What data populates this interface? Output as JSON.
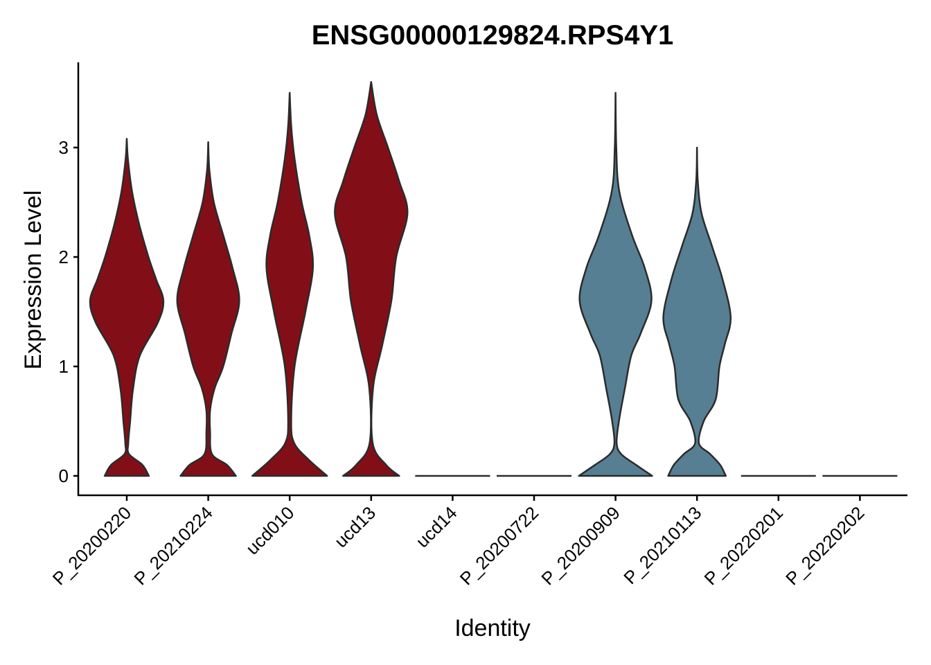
{
  "chart_data": {
    "type": "violin",
    "title": "ENSG00000129824.RPS4Y1",
    "xlabel": "Identity",
    "ylabel": "Expression Level",
    "ylim": [
      -0.17,
      3.75
    ],
    "yticks": [
      0,
      1,
      2,
      3
    ],
    "grid": false,
    "legend": "none",
    "colors": {
      "red": "#820f17",
      "blue": "#567f93",
      "outline": "#2b2b2b"
    },
    "categories": [
      "P_20200220",
      "P_20210224",
      "ucd010",
      "ucd13",
      "ucd14",
      "P_20200722",
      "P_20200909",
      "P_20210113",
      "P_20220201",
      "P_20220202"
    ],
    "groups": [
      {
        "name": "P_20200220",
        "color": "red",
        "max": 3.08,
        "profile": [
          [
            0,
            0.59
          ],
          [
            0.1,
            0.42
          ],
          [
            0.2,
            0.06
          ],
          [
            0.3,
            0.04
          ],
          [
            0.5,
            0.09
          ],
          [
            0.8,
            0.17
          ],
          [
            1.1,
            0.35
          ],
          [
            1.4,
            0.83
          ],
          [
            1.6,
            0.98
          ],
          [
            1.8,
            0.78
          ],
          [
            2.0,
            0.58
          ],
          [
            2.3,
            0.33
          ],
          [
            2.6,
            0.14
          ],
          [
            2.9,
            0.03
          ],
          [
            3.08,
            0
          ]
        ]
      },
      {
        "name": "P_20210224",
        "color": "red",
        "max": 3.05,
        "profile": [
          [
            0,
            0.74
          ],
          [
            0.1,
            0.5
          ],
          [
            0.2,
            0.1
          ],
          [
            0.4,
            0.05
          ],
          [
            0.6,
            0.05
          ],
          [
            0.8,
            0.17
          ],
          [
            1.0,
            0.4
          ],
          [
            1.3,
            0.62
          ],
          [
            1.6,
            0.83
          ],
          [
            1.9,
            0.65
          ],
          [
            2.2,
            0.4
          ],
          [
            2.5,
            0.15
          ],
          [
            2.8,
            0.03
          ],
          [
            3.05,
            0
          ]
        ]
      },
      {
        "name": "ucd010",
        "color": "red",
        "max": 3.5,
        "profile": [
          [
            0,
            1.0
          ],
          [
            0.15,
            0.5
          ],
          [
            0.3,
            0.12
          ],
          [
            0.5,
            0.04
          ],
          [
            1.0,
            0.13
          ],
          [
            1.5,
            0.42
          ],
          [
            1.9,
            0.62
          ],
          [
            2.2,
            0.52
          ],
          [
            2.5,
            0.32
          ],
          [
            2.9,
            0.13
          ],
          [
            3.2,
            0.04
          ],
          [
            3.5,
            0
          ]
        ]
      },
      {
        "name": "ucd13",
        "color": "red",
        "max": 3.6,
        "profile": [
          [
            0,
            0.75
          ],
          [
            0.1,
            0.4
          ],
          [
            0.3,
            0.04
          ],
          [
            0.8,
            0.05
          ],
          [
            1.2,
            0.3
          ],
          [
            1.6,
            0.54
          ],
          [
            2.0,
            0.67
          ],
          [
            2.4,
            0.97
          ],
          [
            2.7,
            0.74
          ],
          [
            3.0,
            0.45
          ],
          [
            3.3,
            0.15
          ],
          [
            3.6,
            0
          ]
        ]
      },
      {
        "name": "ucd14",
        "color": "red",
        "max": 0,
        "profile": []
      },
      {
        "name": "P_20200722",
        "color": "red",
        "max": 0,
        "profile": []
      },
      {
        "name": "P_20200909",
        "color": "blue",
        "max": 3.5,
        "profile": [
          [
            0,
            0.98
          ],
          [
            0.1,
            0.55
          ],
          [
            0.2,
            0.15
          ],
          [
            0.3,
            0.03
          ],
          [
            0.5,
            0.09
          ],
          [
            0.8,
            0.25
          ],
          [
            1.1,
            0.42
          ],
          [
            1.3,
            0.67
          ],
          [
            1.6,
            0.96
          ],
          [
            1.9,
            0.78
          ],
          [
            2.2,
            0.44
          ],
          [
            2.6,
            0.1
          ],
          [
            3.0,
            0.02
          ],
          [
            3.5,
            0
          ]
        ]
      },
      {
        "name": "P_20210113",
        "color": "blue",
        "max": 3.0,
        "profile": [
          [
            0,
            0.77
          ],
          [
            0.1,
            0.62
          ],
          [
            0.2,
            0.35
          ],
          [
            0.3,
            0.05
          ],
          [
            0.5,
            0.18
          ],
          [
            0.7,
            0.5
          ],
          [
            1.0,
            0.6
          ],
          [
            1.2,
            0.74
          ],
          [
            1.45,
            0.9
          ],
          [
            1.8,
            0.68
          ],
          [
            2.1,
            0.4
          ],
          [
            2.4,
            0.12
          ],
          [
            2.7,
            0.02
          ],
          [
            3.0,
            0
          ]
        ]
      },
      {
        "name": "P_20220201",
        "color": "red",
        "max": 0,
        "profile": []
      },
      {
        "name": "P_20220202",
        "color": "red",
        "max": 0,
        "profile": []
      }
    ]
  }
}
